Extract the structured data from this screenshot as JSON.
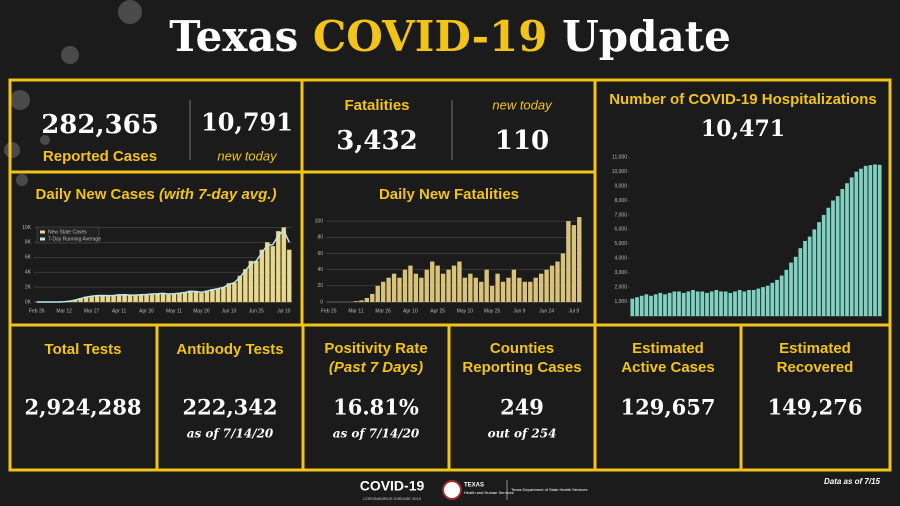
{
  "header": {
    "title": [
      "Texas",
      "COVID-19",
      "Update"
    ]
  },
  "reported_cases": {
    "value": "282,365",
    "label": "Reported Cases",
    "new_value": "10,791",
    "new_label": "new today"
  },
  "fatalities": {
    "label": "Fatalities",
    "value": "3,432",
    "new_label": "new today",
    "new_value": "110"
  },
  "hospitalizations": {
    "value": "10,471"
  },
  "stats": [
    {
      "label": [
        "Total Tests"
      ],
      "value": "2,924,288"
    },
    {
      "label": [
        "Antibody Tests"
      ],
      "value": "222,342",
      "note": "as of 7/14/20"
    },
    {
      "label": [
        "Positivity Rate",
        "(Past 7 Days)"
      ],
      "value": "16.81%",
      "note": "as of 7/14/20"
    },
    {
      "label": [
        "Counties",
        "Reporting Cases"
      ],
      "value": "249",
      "note": "out of 254"
    },
    {
      "label": [
        "Estimated",
        "Active Cases"
      ],
      "value": "129,657"
    },
    {
      "label": [
        "Estimated",
        "Recovered"
      ],
      "value": "149,276"
    }
  ],
  "footer": {
    "logo": "COVID-19",
    "logo_sub": "CORONAVIRUS DISEASE 2019",
    "agency_1": [
      "TEXAS",
      "Health and Human Services"
    ],
    "agency_2": "Texas Department of State Health Services",
    "data_date": "Data as of 7/15"
  },
  "chart_data": [
    {
      "type": "bar",
      "title": "Daily New Cases",
      "subtitle": "(with 7-day avg.)",
      "categories": [
        "Feb 26",
        null,
        null,
        null,
        null,
        "Mar 12",
        null,
        null,
        null,
        null,
        "Mar 27",
        null,
        null,
        null,
        null,
        "Apr 11",
        null,
        null,
        null,
        null,
        "Apr 26",
        null,
        null,
        null,
        null,
        "May 11",
        null,
        null,
        null,
        null,
        "May 26",
        null,
        null,
        null,
        null,
        "Jun 10",
        null,
        null,
        null,
        null,
        "Jun 25",
        null,
        null,
        null,
        null,
        "Jul 10",
        null
      ],
      "series": [
        {
          "name": "New State Cases",
          "color": "#e6d79a",
          "values": [
            0,
            0,
            0,
            0,
            10,
            50,
            150,
            300,
            500,
            700,
            800,
            900,
            900,
            800,
            900,
            1000,
            1000,
            900,
            900,
            1000,
            1000,
            1100,
            1100,
            1200,
            1000,
            1100,
            1200,
            1300,
            1500,
            1400,
            1200,
            1500,
            1700,
            1800,
            2000,
            2500,
            2600,
            3500,
            4400,
            5500,
            5500,
            7000,
            8000,
            7500,
            9500,
            10000,
            7000
          ]
        },
        {
          "name": "7-Day Running Average",
          "color": "#bfe8f0",
          "type": "line",
          "values": [
            0,
            0,
            0,
            0,
            5,
            30,
            100,
            250,
            450,
            650,
            780,
            850,
            880,
            860,
            880,
            950,
            980,
            930,
            920,
            980,
            1000,
            1080,
            1100,
            1150,
            1080,
            1100,
            1180,
            1280,
            1420,
            1400,
            1300,
            1450,
            1650,
            1780,
            1950,
            2350,
            2600,
            3300,
            4200,
            5100,
            5500,
            6600,
            7600,
            7700,
            8900,
            9600,
            8000
          ]
        }
      ],
      "ylim": [
        0,
        11000
      ],
      "yticks": [
        {
          "value": 0,
          "label": "0K"
        },
        {
          "value": 2000,
          "label": "2K"
        },
        {
          "value": 4000,
          "label": "4K"
        },
        {
          "value": 6000,
          "label": "6K"
        },
        {
          "value": 8000,
          "label": "8K"
        },
        {
          "value": 10000,
          "label": "10K"
        }
      ],
      "grid": true,
      "legend": "top-left"
    },
    {
      "type": "bar",
      "title": "Daily New Fatalities",
      "categories": [
        "Feb 25",
        null,
        null,
        null,
        null,
        "Mar 11",
        null,
        null,
        null,
        null,
        "Mar 26",
        null,
        null,
        null,
        null,
        "Apr 10",
        null,
        null,
        null,
        null,
        "Apr 25",
        null,
        null,
        null,
        null,
        "May 10",
        null,
        null,
        null,
        null,
        "May 25",
        null,
        null,
        null,
        null,
        "Jun 9",
        null,
        null,
        null,
        null,
        "Jun 24",
        null,
        null,
        null,
        null,
        "Jul 9",
        null
      ],
      "values": [
        0,
        0,
        0,
        0,
        0,
        1,
        2,
        5,
        10,
        20,
        25,
        30,
        35,
        30,
        40,
        45,
        35,
        30,
        40,
        50,
        45,
        35,
        40,
        45,
        50,
        30,
        35,
        30,
        25,
        40,
        20,
        35,
        25,
        30,
        40,
        30,
        25,
        25,
        30,
        35,
        40,
        45,
        50,
        60,
        100,
        95,
        105
      ],
      "color": "#d9c37a",
      "ylim": [
        0,
        110
      ],
      "yticks": [
        0,
        20,
        40,
        60,
        80,
        100
      ],
      "grid": true
    },
    {
      "type": "bar",
      "title": "Number of COVID-19 Hospitalizations",
      "values": [
        1200,
        1300,
        1400,
        1500,
        1400,
        1500,
        1600,
        1500,
        1600,
        1700,
        1700,
        1600,
        1700,
        1800,
        1700,
        1700,
        1600,
        1700,
        1800,
        1700,
        1700,
        1600,
        1700,
        1800,
        1700,
        1800,
        1800,
        1900,
        2000,
        2100,
        2300,
        2500,
        2800,
        3200,
        3700,
        4100,
        4700,
        5200,
        5500,
        6000,
        6500,
        7000,
        7500,
        8000,
        8300,
        8800,
        9200,
        9600,
        10000,
        10200,
        10400,
        10450,
        10500,
        10471
      ],
      "color": "#7fd1c2",
      "ylim": [
        0,
        11500
      ],
      "yticks": [
        {
          "value": 1000,
          "label": "1,000"
        },
        {
          "value": 2000,
          "label": "2,000"
        },
        {
          "value": 3000,
          "label": "3,000"
        },
        {
          "value": 4000,
          "label": "4,000"
        },
        {
          "value": 5000,
          "label": "5,000"
        },
        {
          "value": 6000,
          "label": "6,000"
        },
        {
          "value": 7000,
          "label": "7,000"
        },
        {
          "value": 8000,
          "label": "8,000"
        },
        {
          "value": 9000,
          "label": "9,000"
        },
        {
          "value": 10000,
          "label": "10,000"
        },
        {
          "value": 11000,
          "label": "11,000"
        }
      ],
      "grid": false
    }
  ]
}
